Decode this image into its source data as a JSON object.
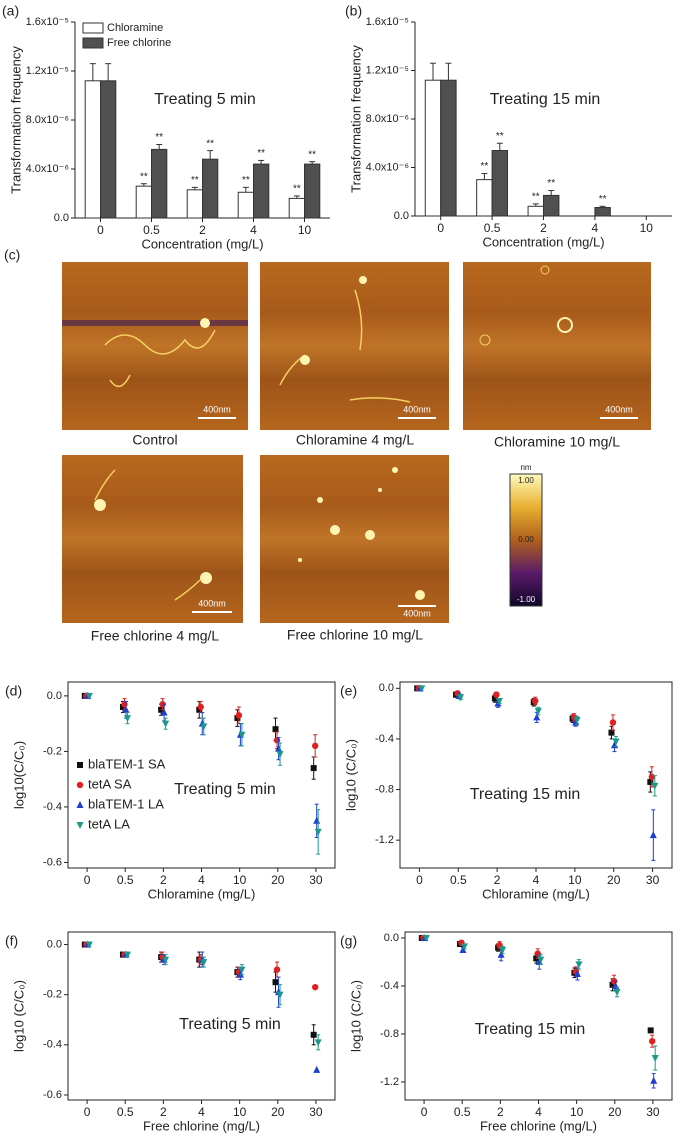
{
  "chart_data": [
    {
      "type": "bar",
      "panel_label": "(a)",
      "annotation": "Treating 5 min",
      "ylabel": "Transformation frequency",
      "xlabel": "Concentration (mg/L)",
      "categories": [
        "0",
        "0.5",
        "2",
        "4",
        "10"
      ],
      "series": [
        {
          "name": "Chloramine",
          "color": "#ffffff",
          "values": [
            1.12e-05,
            2.6e-06,
            2.3e-06,
            2.1e-06,
            1.6e-06
          ],
          "errors": [
            1.4e-06,
            2e-07,
            2e-07,
            4e-07,
            2e-07
          ],
          "significance": [
            null,
            "**",
            "**",
            "**",
            "**"
          ]
        },
        {
          "name": "Free chlorine",
          "color": "#505050",
          "values": [
            1.12e-05,
            5.6e-06,
            4.8e-06,
            4.4e-06,
            4.4e-06
          ],
          "errors": [
            1.4e-06,
            4e-07,
            7e-07,
            3e-07,
            2e-07
          ],
          "significance": [
            null,
            "**",
            "**",
            "**",
            "**"
          ]
        }
      ],
      "ylim": [
        0,
        1.6e-05
      ],
      "yticks": [
        {
          "value": 0,
          "label": "0.0"
        },
        {
          "value": 4e-06,
          "label": "4.0x10⁻⁶"
        },
        {
          "value": 8e-06,
          "label": "8.0x10⁻⁶"
        },
        {
          "value": 1.2e-05,
          "label": "1.2x10⁻⁵"
        },
        {
          "value": 1.6e-05,
          "label": "1.6x10⁻⁵"
        }
      ],
      "legend": "upper left"
    },
    {
      "type": "bar",
      "panel_label": "(b)",
      "annotation": "Treating 15 min",
      "ylabel": "Transformation frequency",
      "xlabel": "Concentration (mg/L)",
      "categories": [
        "0",
        "0.5",
        "2",
        "4",
        "10"
      ],
      "series": [
        {
          "name": "Chloramine",
          "color": "#ffffff",
          "values": [
            1.12e-05,
            3e-06,
            8e-07,
            0,
            0
          ],
          "errors": [
            1.4e-06,
            5e-07,
            2e-07,
            null,
            null
          ],
          "significance": [
            null,
            "**",
            "**",
            null,
            null
          ]
        },
        {
          "name": "Free chlorine",
          "color": "#505050",
          "values": [
            1.12e-05,
            5.4e-06,
            1.7e-06,
            7e-07,
            0
          ],
          "errors": [
            1.4e-06,
            6e-07,
            4e-07,
            1e-07,
            null
          ],
          "significance": [
            null,
            "**",
            "**",
            "**",
            null
          ]
        }
      ],
      "ylim": [
        0,
        1.6e-05
      ],
      "yticks": [
        {
          "value": 0,
          "label": "0.0"
        },
        {
          "value": 4e-06,
          "label": "4.0x10⁻⁶"
        },
        {
          "value": 8e-06,
          "label": "8.0x10⁻⁶"
        },
        {
          "value": 1.2e-05,
          "label": "1.2x10⁻⁵"
        },
        {
          "value": 1.6e-05,
          "label": "1.6x10⁻⁵"
        }
      ]
    },
    {
      "type": "scatter",
      "panel_label": "(d)",
      "annotation": "Treating 5 min",
      "ylabel": "log10(C/C₀)",
      "xlabel": "Chloramine  (mg/L)",
      "categories": [
        "0",
        "0.5",
        "2",
        "4",
        "10",
        "20",
        "30"
      ],
      "series": [
        {
          "name": "blaTEM-1 SA",
          "color": "#111111",
          "marker": "square",
          "values": [
            0,
            -0.04,
            -0.05,
            -0.05,
            -0.08,
            -0.12,
            -0.26
          ],
          "errors": [
            0,
            0.02,
            0.02,
            0.03,
            0.03,
            0.04,
            0.04
          ]
        },
        {
          "name": "tetA SA",
          "color": "#e02020",
          "marker": "circle",
          "values": [
            0,
            -0.03,
            -0.03,
            -0.04,
            -0.07,
            -0.16,
            -0.18
          ],
          "errors": [
            0,
            0.02,
            0.02,
            0.02,
            0.03,
            0.03,
            0.04
          ]
        },
        {
          "name": "blaTEM-1 LA",
          "color": "#1f3fd0",
          "marker": "triangle-up",
          "values": [
            0,
            -0.05,
            -0.06,
            -0.1,
            -0.14,
            -0.19,
            -0.45
          ],
          "errors": [
            0,
            0.03,
            0.03,
            0.04,
            0.04,
            0.04,
            0.06
          ]
        },
        {
          "name": "tetA LA",
          "color": "#1a9a8a",
          "marker": "triangle-down",
          "values": [
            0,
            -0.08,
            -0.1,
            -0.11,
            -0.14,
            -0.21,
            -0.49
          ],
          "errors": [
            0,
            0.02,
            0.02,
            0.03,
            0.04,
            0.04,
            0.08
          ]
        }
      ],
      "ylim": [
        -0.62,
        0.05
      ],
      "yticks": [
        {
          "value": 0,
          "label": "0.0"
        },
        -0.2,
        -0.4,
        -0.6
      ],
      "legend": "center left"
    },
    {
      "type": "scatter",
      "panel_label": "(e)",
      "annotation": "Treating 15 min",
      "ylabel": "log10 (C/C₀)",
      "xlabel": "Chloramine  (mg/L)",
      "categories": [
        "0",
        "0.5",
        "2",
        "4",
        "10",
        "20",
        "30"
      ],
      "series": [
        {
          "name": "blaTEM-1 SA",
          "color": "#111111",
          "marker": "square",
          "values": [
            0,
            -0.05,
            -0.08,
            -0.11,
            -0.24,
            -0.35,
            -0.74
          ],
          "errors": [
            0,
            0.02,
            0.03,
            0.03,
            0.03,
            0.05,
            0.08
          ]
        },
        {
          "name": "tetA SA",
          "color": "#e02020",
          "marker": "circle",
          "values": [
            0,
            -0.04,
            -0.05,
            -0.1,
            -0.23,
            -0.27,
            -0.7
          ],
          "errors": [
            0,
            0.02,
            0.02,
            0.03,
            0.03,
            0.06,
            0.08
          ]
        },
        {
          "name": "blaTEM-1 LA",
          "color": "#1f3fd0",
          "marker": "triangle-up",
          "values": [
            0,
            -0.06,
            -0.12,
            -0.23,
            -0.27,
            -0.45,
            -1.16
          ],
          "errors": [
            0,
            0.02,
            0.03,
            0.04,
            0.03,
            0.05,
            0.2
          ]
        },
        {
          "name": "tetA LA",
          "color": "#1a9a8a",
          "marker": "triangle-down",
          "values": [
            0,
            -0.07,
            -0.1,
            -0.18,
            -0.25,
            -0.42,
            -0.77
          ],
          "errors": [
            0,
            0.02,
            0.02,
            0.03,
            0.03,
            0.04,
            0.08
          ]
        }
      ],
      "ylim": [
        -1.42,
        0.05
      ],
      "yticks": [
        {
          "value": 0,
          "label": "0.0"
        },
        -0.4,
        -0.8,
        -1.2
      ]
    },
    {
      "type": "scatter",
      "panel_label": "(f)",
      "annotation": "Treating 5 min",
      "ylabel": "log10 (C/C₀)",
      "xlabel": "Free chlorine  (mg/L)",
      "categories": [
        "0",
        "0.5",
        "2",
        "4",
        "10",
        "20",
        "30"
      ],
      "series": [
        {
          "name": "blaTEM-1 SA",
          "color": "#111111",
          "marker": "square",
          "values": [
            0,
            -0.04,
            -0.05,
            -0.06,
            -0.11,
            -0.15,
            -0.36
          ],
          "errors": [
            0,
            0.01,
            0.02,
            0.03,
            0.02,
            0.04,
            0.04
          ]
        },
        {
          "name": "tetA SA",
          "color": "#e02020",
          "marker": "circle",
          "values": [
            0,
            -0.04,
            -0.05,
            -0.06,
            -0.11,
            -0.1,
            -0.17
          ],
          "errors": [
            0,
            0.01,
            0.02,
            0.02,
            0.02,
            0.03,
            0
          ]
        },
        {
          "name": "blaTEM-1 LA",
          "color": "#1f3fd0",
          "marker": "triangle-up",
          "values": [
            0,
            -0.04,
            -0.06,
            -0.06,
            -0.12,
            -0.19,
            -0.5
          ],
          "errors": [
            0,
            0.01,
            0.02,
            0.03,
            0.02,
            0.06,
            0
          ]
        },
        {
          "name": "tetA LA",
          "color": "#1a9a8a",
          "marker": "triangle-down",
          "values": [
            0,
            -0.04,
            -0.06,
            -0.07,
            -0.1,
            -0.2,
            -0.39
          ],
          "errors": [
            0,
            0.01,
            0.02,
            0.02,
            0.02,
            0.04,
            0.03
          ]
        }
      ],
      "ylim": [
        -0.62,
        0.05
      ],
      "yticks": [
        {
          "value": 0,
          "label": "0.0"
        },
        -0.2,
        -0.4,
        -0.6
      ]
    },
    {
      "type": "scatter",
      "panel_label": "(g)",
      "annotation": "Treating 15 min",
      "ylabel": "log10 (C/C₀)",
      "xlabel": "Free chlorine  (mg/L)",
      "categories": [
        "0",
        "0.5",
        "2",
        "4",
        "10",
        "20",
        "30"
      ],
      "series": [
        {
          "name": "blaTEM-1 SA",
          "color": "#111111",
          "marker": "square",
          "values": [
            0,
            -0.05,
            -0.08,
            -0.17,
            -0.29,
            -0.39,
            -0.77
          ],
          "errors": [
            0,
            0.02,
            0.03,
            0.04,
            0.04,
            0.05,
            0
          ]
        },
        {
          "name": "tetA SA",
          "color": "#e02020",
          "marker": "circle",
          "values": [
            0,
            -0.04,
            -0.06,
            -0.13,
            -0.28,
            -0.36,
            -0.86
          ],
          "errors": [
            0,
            0.02,
            0.03,
            0.04,
            0.04,
            0.05,
            0.05
          ]
        },
        {
          "name": "blaTEM-1 LA",
          "color": "#1f3fd0",
          "marker": "triangle-up",
          "values": [
            0,
            -0.1,
            -0.14,
            -0.2,
            -0.3,
            -0.4,
            -1.19
          ],
          "errors": [
            0,
            0.02,
            0.05,
            0.06,
            0.05,
            0.04,
            0.06
          ]
        },
        {
          "name": "tetA LA",
          "color": "#1a9a8a",
          "marker": "triangle-down",
          "values": [
            0,
            -0.07,
            -0.1,
            -0.18,
            -0.22,
            -0.45,
            -1.0
          ],
          "errors": [
            0,
            0.02,
            0.03,
            0.04,
            0.04,
            0.04,
            0.1
          ]
        }
      ],
      "ylim": [
        -1.35,
        0.05
      ],
      "yticks": [
        {
          "value": 0,
          "label": "0.0"
        },
        -0.4,
        -0.8,
        -1.2
      ]
    }
  ],
  "afm": {
    "panel_label": "(c)",
    "images": [
      {
        "caption": "Control",
        "scale_bar": "400nm"
      },
      {
        "caption": "Chloramine 4 mg/L",
        "scale_bar": "400nm"
      },
      {
        "caption": "Chloramine 10 mg/L",
        "scale_bar": "400nm"
      },
      {
        "caption": "Free chlorine 4 mg/L",
        "scale_bar": "400nm"
      },
      {
        "caption": "Free chlorine 10 mg/L",
        "scale_bar": "400nm"
      }
    ],
    "colorbar": {
      "unit": "nm",
      "ticks": [
        "1.00",
        "0.00",
        "-1.00"
      ]
    }
  }
}
